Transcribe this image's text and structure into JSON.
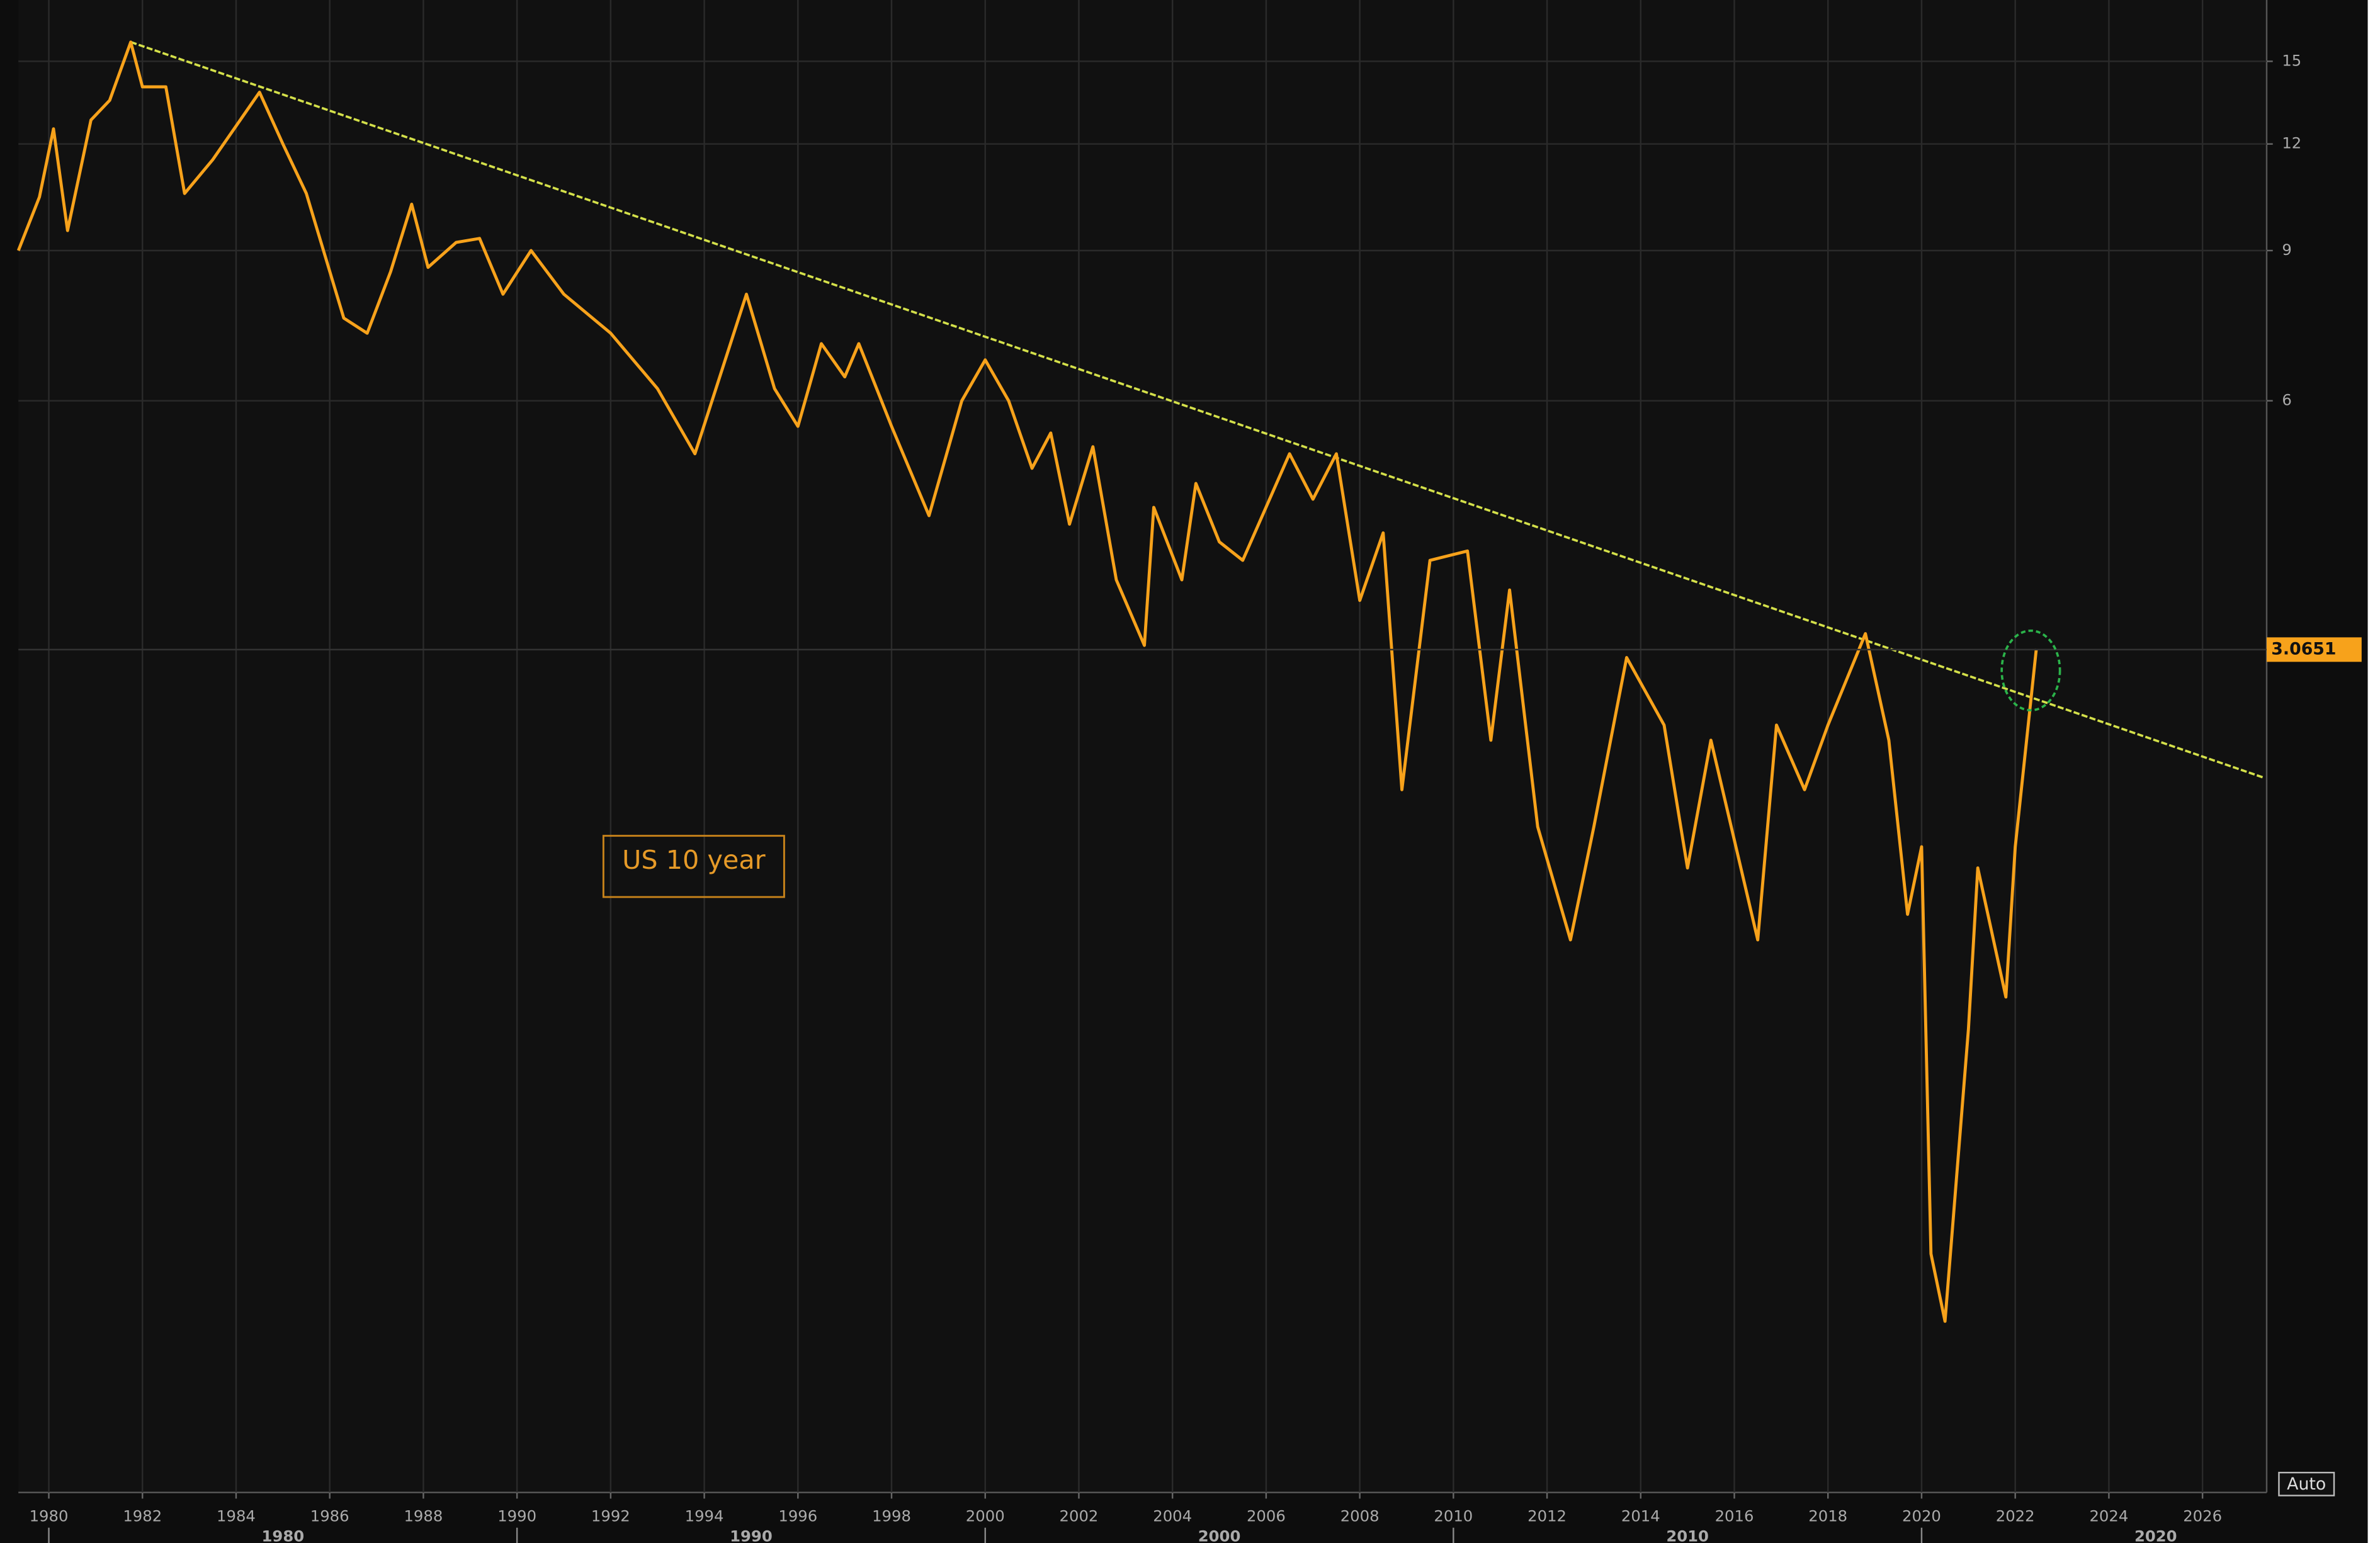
{
  "chart_data": {
    "type": "line",
    "log_scale": true,
    "grid": true,
    "series": [
      {
        "name": "US 10 year",
        "color": "#f7a21b",
        "x": [
          1979.35,
          1979.8,
          1980.1,
          1980.4,
          1980.9,
          1981.3,
          1981.75,
          1982.0,
          1982.5,
          1982.9,
          1983.5,
          1984.5,
          1985.0,
          1985.5,
          1986.3,
          1986.8,
          1987.3,
          1987.75,
          1988.1,
          1988.7,
          1989.2,
          1989.7,
          1990.3,
          1991.0,
          1992.0,
          1993.0,
          1993.8,
          1994.9,
          1995.5,
          1996.0,
          1996.5,
          1997.0,
          1997.3,
          1998.0,
          1998.8,
          1999.5,
          2000.0,
          2000.5,
          2001.0,
          2001.4,
          2001.8,
          2002.3,
          2002.8,
          2003.4,
          2003.6,
          2004.2,
          2004.5,
          2005.0,
          2005.5,
          2006.5,
          2007.0,
          2007.5,
          2008.0,
          2008.5,
          2008.9,
          2009.5,
          2010.3,
          2010.8,
          2011.2,
          2011.8,
          2012.5,
          2013.0,
          2013.7,
          2014.5,
          2015.0,
          2015.5,
          2016.5,
          2016.9,
          2017.5,
          2018.0,
          2018.8,
          2019.3,
          2019.7,
          2020.0,
          2020.2,
          2020.5,
          2021.0,
          2021.2,
          2021.8,
          2022.0,
          2022.45
        ],
        "values": [
          9.0,
          10.4,
          12.5,
          9.5,
          12.8,
          13.5,
          15.8,
          14.0,
          14.0,
          10.5,
          11.5,
          13.8,
          12.0,
          10.5,
          7.5,
          7.2,
          8.5,
          10.2,
          8.6,
          9.2,
          9.3,
          8.0,
          9.0,
          8.0,
          7.2,
          6.2,
          5.2,
          8.0,
          6.2,
          5.6,
          7.0,
          6.4,
          7.0,
          5.6,
          4.4,
          6.0,
          6.7,
          6.0,
          5.0,
          5.5,
          4.3,
          5.3,
          3.7,
          3.1,
          4.5,
          3.7,
          4.8,
          4.1,
          3.9,
          5.2,
          4.6,
          5.2,
          3.5,
          4.2,
          2.1,
          3.9,
          4.0,
          2.4,
          3.6,
          1.9,
          1.4,
          1.9,
          3.0,
          2.5,
          1.7,
          2.4,
          1.4,
          2.5,
          2.1,
          2.5,
          3.2,
          2.4,
          1.5,
          1.8,
          0.6,
          0.5,
          1.1,
          1.7,
          1.2,
          1.8,
          3.07
        ]
      }
    ],
    "trendline": {
      "color": "#d4e04a",
      "x": [
        1981.75,
        2027.3
      ],
      "values": [
        15.8,
        2.17
      ]
    },
    "last_value": 3.0651,
    "xlim": [
      1979.35,
      2027.37
    ],
    "ylim": [
      0.315,
      17.7
    ],
    "xticks": [
      1980,
      1982,
      1984,
      1986,
      1988,
      1990,
      1992,
      1994,
      1996,
      1998,
      2000,
      2002,
      2004,
      2006,
      2008,
      2010,
      2012,
      2014,
      2016,
      2018,
      2020,
      2022,
      2024,
      2026
    ],
    "decade_labels": [
      1980,
      1990,
      2000,
      2010,
      2020
    ],
    "yticks": [
      6,
      9,
      12,
      15
    ],
    "button": "Auto"
  }
}
